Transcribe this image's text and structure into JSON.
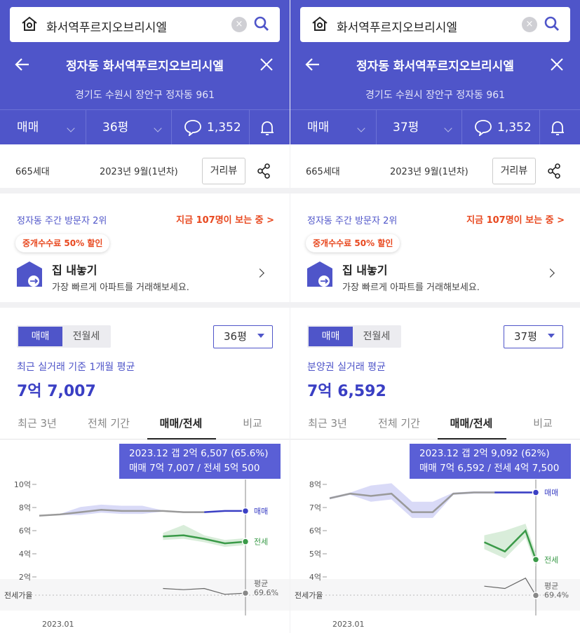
{
  "colors": {
    "brand": "#4f55c9",
    "sale": "#3a3fc4",
    "jeonse": "#3a9a48",
    "ratio": "#888888",
    "hot": "#e8481f"
  },
  "panels": [
    {
      "search": {
        "query": "화서역푸르지오브리시엘",
        "home_icon": "home-icon",
        "search_icon": "search-icon",
        "clear_icon": "clear-icon"
      },
      "title": "정자동 화서역푸르지오브리시엘",
      "address": "경기도 수원시 장안구 정자동 961",
      "tabs": {
        "deal": "매매",
        "size": "36평",
        "comments": "1,352"
      },
      "info": {
        "units": "665세대",
        "date": "2023년 9월(1년차)",
        "street_view": "거리뷰"
      },
      "visitors": {
        "rank": "정자동 주간 방문자 2위",
        "now": "지금 107명이 보는 중 >"
      },
      "sell": {
        "badge": "중개수수료 50% 할인",
        "title": "집 내놓기",
        "sub": "가장 빠르게 아파트를 거래해보세요."
      },
      "trade": {
        "seg_on": "매매",
        "seg_off": "전월세",
        "size": "36평",
        "avg_label": "최근 실거래 기준 1개월 평균",
        "avg_price": "7억 7,007",
        "period_tabs": [
          "최근 3년",
          "전체 기간",
          "매매/전세",
          "비교"
        ]
      },
      "tooltip": {
        "line1": "2023.12  갭 2억 6,507 (65.6%)",
        "line2": "매매 7억 7,007 / 전세 5억 500"
      },
      "chart_data": {
        "type": "line",
        "y_ticks": [
          "10억",
          "8억",
          "6억",
          "4억",
          "2억"
        ],
        "ratio_label": "전세가율",
        "x_label": "2023.01",
        "series": [
          {
            "name": "매매",
            "x": [
              0,
              0.1,
              0.2,
              0.3,
              0.4,
              0.5,
              0.6,
              0.7,
              0.8,
              0.9,
              1.0
            ],
            "values": [
              7.3,
              7.4,
              7.6,
              7.8,
              7.7,
              7.7,
              7.7,
              7.6,
              7.6,
              7.7,
              7.7
            ]
          },
          {
            "name": "전세",
            "x": [
              0.6,
              0.7,
              0.8,
              0.9,
              1.0
            ],
            "values": [
              5.5,
              5.6,
              5.3,
              4.9,
              5.05
            ]
          },
          {
            "name": "평균",
            "x": [
              0.6,
              0.7,
              0.8,
              0.9,
              1.0
            ],
            "values": [
              1.0,
              0.9,
              1.0,
              0.5,
              0.6
            ]
          }
        ],
        "end_labels": {
          "sale": "매매",
          "jeonse": "전세",
          "avg": "평균",
          "avg_value": "69.6%"
        }
      }
    },
    {
      "search": {
        "query": "화서역푸르지오브리시엘",
        "home_icon": "home-icon",
        "search_icon": "search-icon",
        "clear_icon": "clear-icon"
      },
      "title": "정자동 화서역푸르지오브리시엘",
      "address": "경기도 수원시 장안구 정자동 961",
      "tabs": {
        "deal": "매매",
        "size": "37평",
        "comments": "1,352"
      },
      "info": {
        "units": "665세대",
        "date": "2023년 9월(1년차)",
        "street_view": "거리뷰"
      },
      "visitors": {
        "rank": "정자동 주간 방문자 2위",
        "now": "지금 107명이 보는 중 >"
      },
      "sell": {
        "badge": "중개수수료 50% 할인",
        "title": "집 내놓기",
        "sub": "가장 빠르게 아파트를 거래해보세요."
      },
      "trade": {
        "seg_on": "매매",
        "seg_off": "전월세",
        "size": "37평",
        "avg_label": "분양권 실거래 평균",
        "avg_price": "7억 6,592",
        "period_tabs": [
          "최근 3년",
          "전체 기간",
          "매매/전세",
          "비교"
        ]
      },
      "tooltip": {
        "line1": "2023.12  갭 2억 9,092 (62%)",
        "line2": "매매 7억 6,592 / 전세 4억 7,500"
      },
      "chart_data": {
        "type": "line",
        "y_ticks": [
          "8억",
          "7억",
          "6억",
          "5억",
          "4억"
        ],
        "ratio_label": "전세가율",
        "x_label": "2023.01",
        "series": [
          {
            "name": "매매",
            "x": [
              0,
              0.1,
              0.2,
              0.3,
              0.4,
              0.5,
              0.6,
              0.7,
              0.8,
              0.9,
              1.0
            ],
            "values": [
              7.4,
              7.6,
              7.5,
              7.6,
              6.8,
              6.8,
              7.6,
              7.65,
              7.65,
              7.65,
              7.65
            ]
          },
          {
            "name": "전세",
            "x": [
              0.75,
              0.85,
              0.95,
              1.0
            ],
            "values": [
              5.5,
              5.1,
              6.0,
              4.75
            ]
          },
          {
            "name": "평균",
            "x": [
              0.75,
              0.85,
              0.95,
              1.0
            ],
            "values": [
              3.6,
              3.5,
              3.95,
              3.2
            ]
          }
        ],
        "end_labels": {
          "sale": "매매",
          "jeonse": "전세",
          "avg": "평균",
          "avg_value": "69.4%"
        }
      }
    }
  ]
}
